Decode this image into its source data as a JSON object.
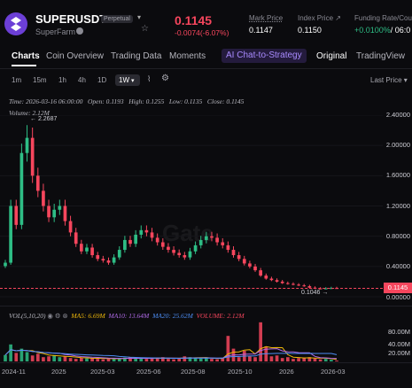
{
  "header": {
    "symbol": "SUPERUSDT",
    "contract_badge": "Perpetual",
    "subtitle": "SuperFarm",
    "price": "0.1145",
    "change": "-0.0074(-6.07%)",
    "mark_price_label": "Mark Price",
    "mark_price": "0.1147",
    "index_price_label": "Index Price ↗",
    "index_price": "0.1150",
    "funding_label": "Funding Rate/Cou",
    "funding_value": "+0.0100%",
    "funding_countdown": "/ 06:0"
  },
  "tabs": [
    "Charts",
    "Coin Overview",
    "Trading Data",
    "Moments",
    "AI Chat-to-Strategy",
    "Original",
    "TradingView"
  ],
  "timeframes": [
    "1m",
    "15m",
    "1h",
    "4h",
    "1D",
    "1W"
  ],
  "timeframe_selected": "1W",
  "last_price_dropdown": "Last Price",
  "ohlc": {
    "time": "Time: 2026-03-16 06:00:00",
    "open": "Open: 0.1193",
    "high": "High: 0.1255",
    "low": "Low: 0.1135",
    "close": "Close: 0.1145"
  },
  "volume_label": "Volume: 2.12M",
  "annotations": {
    "high_label": "2.2687",
    "low_label": "0.1046",
    "current_price_tag": "0.1145"
  },
  "y_axis": [
    "2.40000",
    "2.00000",
    "1.60000",
    "1.20000",
    "0.80000",
    "0.40000",
    "0.00000"
  ],
  "x_axis": [
    "2024-11",
    "2025",
    "2025-03",
    "2025-06",
    "2025-08",
    "2025-10",
    "2026",
    "2026-03"
  ],
  "indicators": {
    "vol_label": "VOL(5,10,20)",
    "ma5": "MA5: 6.69M",
    "ma10": "MA10: 13.64M",
    "ma20": "MA20: 25.62M",
    "volume": "VOLUME: 2.12M"
  },
  "vol_axis": [
    "80.00M",
    "40.00M",
    "20.00M"
  ],
  "watermark": "Gate",
  "colors": {
    "up": "#2ebd85",
    "down": "#f6465d",
    "ma5": "#f0b90b",
    "ma10": "#b06be8",
    "ma20": "#4d8ef5",
    "accent_ai": "#8c6cf7"
  },
  "chart_data": {
    "type": "candlestick",
    "interval": "1W",
    "price_range": [
      0,
      2.4
    ],
    "closes": [
      0.45,
      1.2,
      0.95,
      1.9,
      2.1,
      1.6,
      1.4,
      1.2,
      1.05,
      1.15,
      1.2,
      1.0,
      0.85,
      0.7,
      0.6,
      0.65,
      0.55,
      0.5,
      0.48,
      0.45,
      0.52,
      0.62,
      0.75,
      0.7,
      0.82,
      0.88,
      0.85,
      0.78,
      0.72,
      0.66,
      0.62,
      0.58,
      0.55,
      0.52,
      0.6,
      0.68,
      0.75,
      0.8,
      0.78,
      0.72,
      0.68,
      0.62,
      0.55,
      0.5,
      0.44,
      0.4,
      0.35,
      0.28,
      0.24,
      0.22,
      0.2,
      0.18,
      0.17,
      0.16,
      0.15,
      0.14,
      0.12,
      0.11,
      0.105,
      0.11,
      0.115,
      0.1145
    ],
    "volumes_m": [
      15,
      40,
      20,
      30,
      22,
      14,
      18,
      10,
      12,
      15,
      10,
      12,
      8,
      6,
      9,
      7,
      8,
      6,
      5,
      7,
      6,
      8,
      9,
      10,
      7,
      8,
      6,
      7,
      9,
      10,
      6,
      5,
      8,
      12,
      10,
      8,
      7,
      9,
      6,
      5,
      8,
      60,
      30,
      10,
      25,
      12,
      10,
      92,
      35,
      12,
      14,
      8,
      10,
      6,
      8,
      9,
      10,
      7,
      5,
      6,
      4,
      2.12
    ]
  }
}
